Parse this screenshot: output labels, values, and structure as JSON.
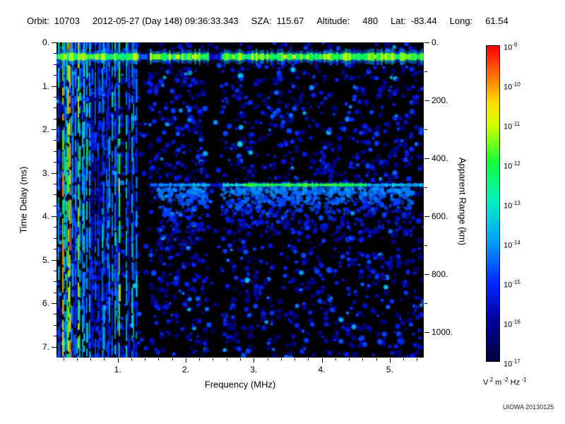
{
  "header": {
    "fields": [
      {
        "label": "Orbit:",
        "value": "10703"
      },
      {
        "label": "",
        "value": "2012-05-27 (Day 148) 09:36:33.343"
      },
      {
        "label": "SZA:",
        "value": "115.67"
      },
      {
        "label": "Altitude:",
        "value": "480",
        "wide_gap": true
      },
      {
        "label": "Lat:",
        "value": "-83.44"
      },
      {
        "label": "Long:",
        "value": "61.54",
        "wide_gap": true
      }
    ]
  },
  "chart_data": {
    "type": "heatmap",
    "title": "",
    "xlabel": "Frequency (MHz)",
    "ylabel": "Time Delay (ms)",
    "ylabel_right": "Apparent Range (km)",
    "x_range_mhz": [
      0.1,
      5.5
    ],
    "y_range_ms": [
      0,
      7.25
    ],
    "km_per_ms": 150,
    "grid": false,
    "x_ticks": [
      {
        "value": 1,
        "label": "1."
      },
      {
        "value": 2,
        "label": "2."
      },
      {
        "value": 3,
        "label": "3."
      },
      {
        "value": 4,
        "label": "4."
      },
      {
        "value": 5,
        "label": "5."
      }
    ],
    "y_ticks_left": [
      {
        "value": 0,
        "label": "0."
      },
      {
        "value": 1,
        "label": "1."
      },
      {
        "value": 2,
        "label": "2."
      },
      {
        "value": 3,
        "label": "3."
      },
      {
        "value": 4,
        "label": "4."
      },
      {
        "value": 5,
        "label": "5."
      },
      {
        "value": 6,
        "label": "6."
      },
      {
        "value": 7,
        "label": "7."
      }
    ],
    "y_ticks_right": [
      {
        "value": 0,
        "label": "0."
      },
      {
        "value": 200,
        "label": "200."
      },
      {
        "value": 400,
        "label": "400."
      },
      {
        "value": 600,
        "label": "600."
      },
      {
        "value": 800,
        "label": "800."
      },
      {
        "value": 1000,
        "label": "1000."
      }
    ],
    "colorbar": {
      "scale": "log10",
      "tick_exponents": [
        -9,
        -10,
        -11,
        -12,
        -13,
        -14,
        -15,
        -16,
        -17
      ],
      "unit_parts": [
        [
          "V",
          "2"
        ],
        [
          "m",
          "-2"
        ],
        [
          "Hz",
          "-1"
        ]
      ],
      "stops": [
        {
          "pos": 0.0,
          "color": "#00003C"
        },
        {
          "pos": 0.13,
          "color": "#0000A0"
        },
        {
          "pos": 0.25,
          "color": "#0028FF"
        },
        {
          "pos": 0.38,
          "color": "#00A0FF"
        },
        {
          "pos": 0.5,
          "color": "#00EBC8"
        },
        {
          "pos": 0.63,
          "color": "#14FF3C"
        },
        {
          "pos": 0.75,
          "color": "#D2FF00"
        },
        {
          "pos": 0.82,
          "color": "#FFDC00"
        },
        {
          "pos": 0.9,
          "color": "#FF7800"
        },
        {
          "pos": 1.0,
          "color": "#FF0000"
        }
      ]
    },
    "features": {
      "seed": 1234,
      "background_speckle": {
        "count": 2600,
        "value_range": [
          0.06,
          0.3
        ]
      },
      "ionosphere_stripes": {
        "freq_range": [
          0.1,
          1.45
        ],
        "bright_freqs": [
          0.16,
          0.28,
          0.42,
          0.55,
          1.02
        ]
      },
      "first_hop_band": {
        "delay_ms": 0.33,
        "apparent_range_km": 49.5,
        "thickness_ms": 0.14,
        "value": 0.66
      },
      "surface_echo": {
        "delay_ms": 3.28,
        "apparent_range_km": 492,
        "freq_start": 1.45,
        "bright_range": [
          2.85,
          4.65
        ],
        "value": 0.62
      },
      "diffuse_scatter": {
        "count": 850,
        "freq_range": [
          1.6,
          5.35
        ],
        "delay_range": [
          3.35,
          4.7
        ]
      },
      "dark_gaps_mhz": [
        [
          1.3,
          1.47
        ],
        [
          2.33,
          2.52
        ]
      ]
    }
  },
  "watermark": "UIOWA 20130125"
}
